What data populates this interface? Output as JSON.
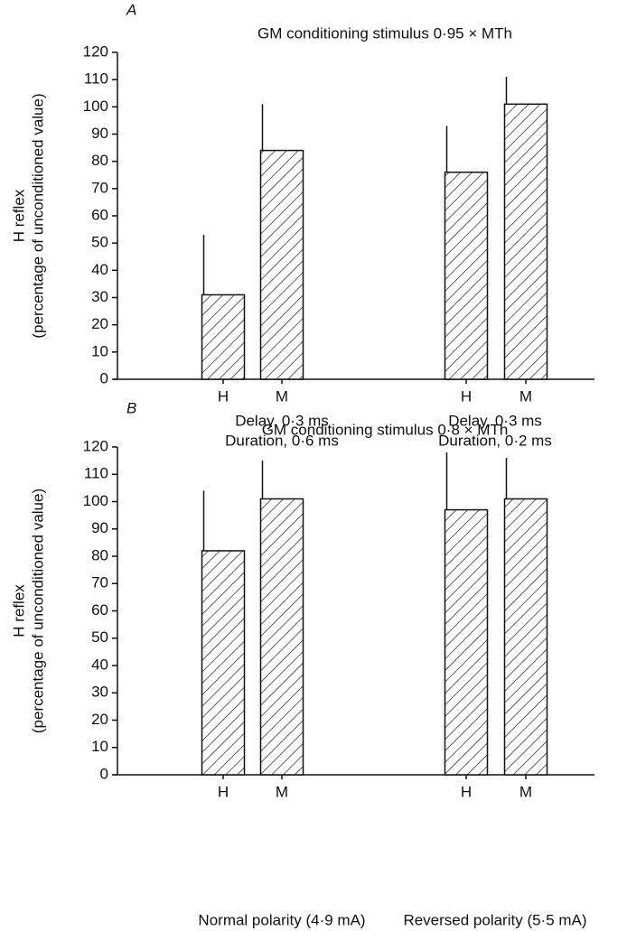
{
  "chart_data": [
    {
      "type": "bar",
      "panel_label": "A",
      "title": "GM conditioning stimulus 0·95 × MTh",
      "ylabel": [
        "H reflex",
        "(percentage of unconditioned value)"
      ],
      "categories": [
        "H",
        "M",
        "H",
        "M"
      ],
      "values": [
        31,
        84,
        76,
        101
      ],
      "errors": [
        22,
        17,
        17,
        10
      ],
      "group_labels": [
        [
          "Delay, 0·3 ms",
          "Duration, 0·6 ms"
        ],
        [
          "Delay, 0·3 ms",
          "Duration, 0·2 ms"
        ]
      ],
      "ylim": [
        0,
        120
      ],
      "yticks": [
        0,
        10,
        20,
        30,
        40,
        50,
        60,
        70,
        80,
        90,
        100,
        110,
        120
      ]
    },
    {
      "type": "bar",
      "panel_label": "B",
      "title": "GM conditioning stimulus 0·8 × MTh",
      "ylabel": [
        "H reflex",
        "(percentage of unconditioned value)"
      ],
      "categories": [
        "H",
        "M",
        "H",
        "M"
      ],
      "values": [
        82,
        101,
        97,
        101
      ],
      "errors": [
        22,
        14,
        21,
        15
      ],
      "group_labels": [
        [
          "Normal polarity (4·9 mA)"
        ],
        [
          "Reversed polarity (5·5 mA)"
        ]
      ],
      "ylim": [
        0,
        120
      ],
      "yticks": [
        0,
        10,
        20,
        30,
        40,
        50,
        60,
        70,
        80,
        90,
        100,
        110,
        120
      ]
    }
  ]
}
